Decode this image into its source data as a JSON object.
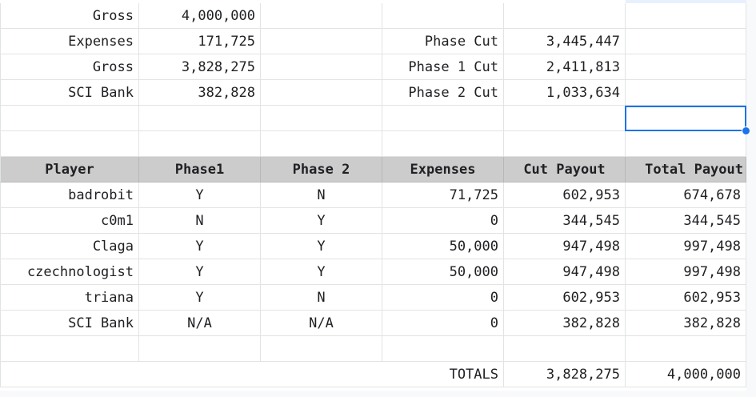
{
  "summary": [
    {
      "label": "Gross",
      "value": "4,000,000",
      "cut_label": "",
      "cut_value": ""
    },
    {
      "label": "Expenses",
      "value": "171,725",
      "cut_label": "Phase Cut",
      "cut_value": "3,445,447"
    },
    {
      "label": "Gross",
      "value": "3,828,275",
      "cut_label": "Phase 1 Cut",
      "cut_value": "2,411,813"
    },
    {
      "label": "SCI Bank",
      "value": "382,828",
      "cut_label": "Phase 2 Cut",
      "cut_value": "1,033,634"
    }
  ],
  "table": {
    "headers": [
      "Player",
      "Phase1",
      "Phase 2",
      "Expenses",
      "Cut Payout",
      "Total Payout"
    ],
    "rows": [
      {
        "player": "badrobit",
        "phase1": "Y",
        "phase2": "N",
        "expenses": "71,725",
        "cut_payout": "602,953",
        "total_payout": "674,678"
      },
      {
        "player": "c0m1",
        "phase1": "N",
        "phase2": "Y",
        "expenses": "0",
        "cut_payout": "344,545",
        "total_payout": "344,545"
      },
      {
        "player": "Claga",
        "phase1": "Y",
        "phase2": "Y",
        "expenses": "50,000",
        "cut_payout": "947,498",
        "total_payout": "997,498"
      },
      {
        "player": "czechnologist",
        "phase1": "Y",
        "phase2": "Y",
        "expenses": "50,000",
        "cut_payout": "947,498",
        "total_payout": "997,498"
      },
      {
        "player": "triana",
        "phase1": "Y",
        "phase2": "N",
        "expenses": "0",
        "cut_payout": "602,953",
        "total_payout": "602,953"
      },
      {
        "player": "SCI Bank",
        "phase1": "N/A",
        "phase2": "N/A",
        "expenses": "0",
        "cut_payout": "382,828",
        "total_payout": "382,828"
      }
    ]
  },
  "totals": {
    "label": "TOTALS",
    "cut_payout": "3,828,275",
    "total_payout": "4,000,000"
  },
  "colors": {
    "selection": "#1a73e8",
    "header_bg": "#cccccc",
    "gridline": "#e2e3e3"
  }
}
